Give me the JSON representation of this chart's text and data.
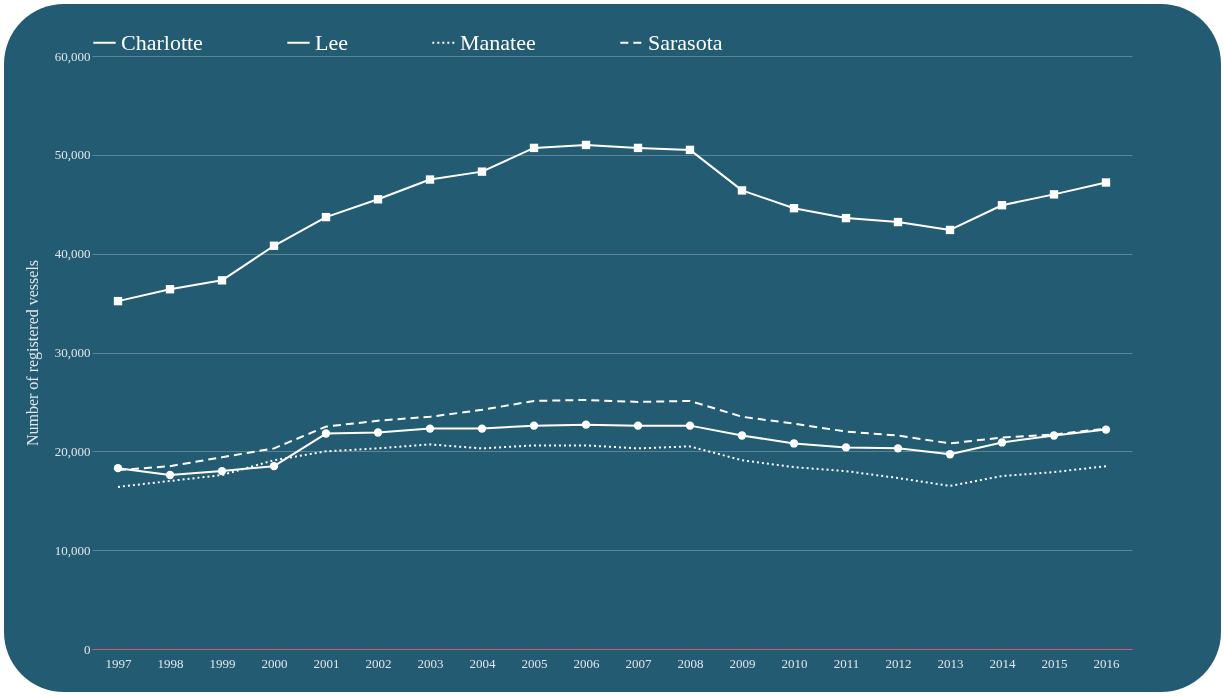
{
  "chart_data": {
    "type": "line",
    "ylabel": "Number of registered vessels",
    "categories": [
      "1997",
      "1998",
      "1999",
      "2000",
      "2001",
      "2002",
      "2003",
      "2004",
      "2005",
      "2006",
      "2007",
      "2008",
      "2009",
      "2010",
      "2011",
      "2012",
      "2013",
      "2014",
      "2015",
      "2016"
    ],
    "series": [
      {
        "name": "Charlotte",
        "color": "#ffffff",
        "marker": "circle",
        "line_style": "solid",
        "values": [
          18300,
          17600,
          18000,
          18500,
          21800,
          21900,
          22300,
          22300,
          22600,
          22700,
          22600,
          22600,
          21600,
          20800,
          20400,
          20300,
          19700,
          20900,
          21600,
          22200
        ]
      },
      {
        "name": "Lee",
        "color": "#ffffff",
        "marker": "square",
        "line_style": "solid",
        "values": [
          35200,
          36400,
          37300,
          40800,
          43700,
          45500,
          47500,
          48300,
          50700,
          51000,
          50700,
          50500,
          46400,
          44600,
          43600,
          43200,
          42400,
          44900,
          46000,
          47200
        ]
      },
      {
        "name": "Manatee",
        "color": "#ffffff",
        "marker": "none",
        "line_style": "dotted",
        "values": [
          16400,
          17000,
          17600,
          19100,
          20000,
          20300,
          20700,
          20300,
          20600,
          20600,
          20300,
          20500,
          19100,
          18400,
          18000,
          17300,
          16500,
          17500,
          17900,
          18500
        ]
      },
      {
        "name": "Sarasota",
        "color": "#ffffff",
        "marker": "none",
        "line_style": "dashed",
        "values": [
          18100,
          18500,
          19400,
          20300,
          22500,
          23100,
          23500,
          24200,
          25100,
          25200,
          25000,
          25100,
          23500,
          22800,
          22000,
          21600,
          20800,
          21400,
          21700,
          22300
        ]
      }
    ],
    "ylim": [
      0,
      60000
    ],
    "yticks": [
      0,
      {
        "value": 10000,
        "label": "10,000"
      },
      {
        "value": 20000,
        "label": "20,000"
      },
      {
        "value": 30000,
        "label": "30,000"
      },
      {
        "value": 40000,
        "label": "40,000"
      },
      {
        "value": 50000,
        "label": "50,000"
      },
      {
        "value": 60000,
        "label": "60,000"
      }
    ],
    "grid": "y",
    "legend": "top"
  }
}
